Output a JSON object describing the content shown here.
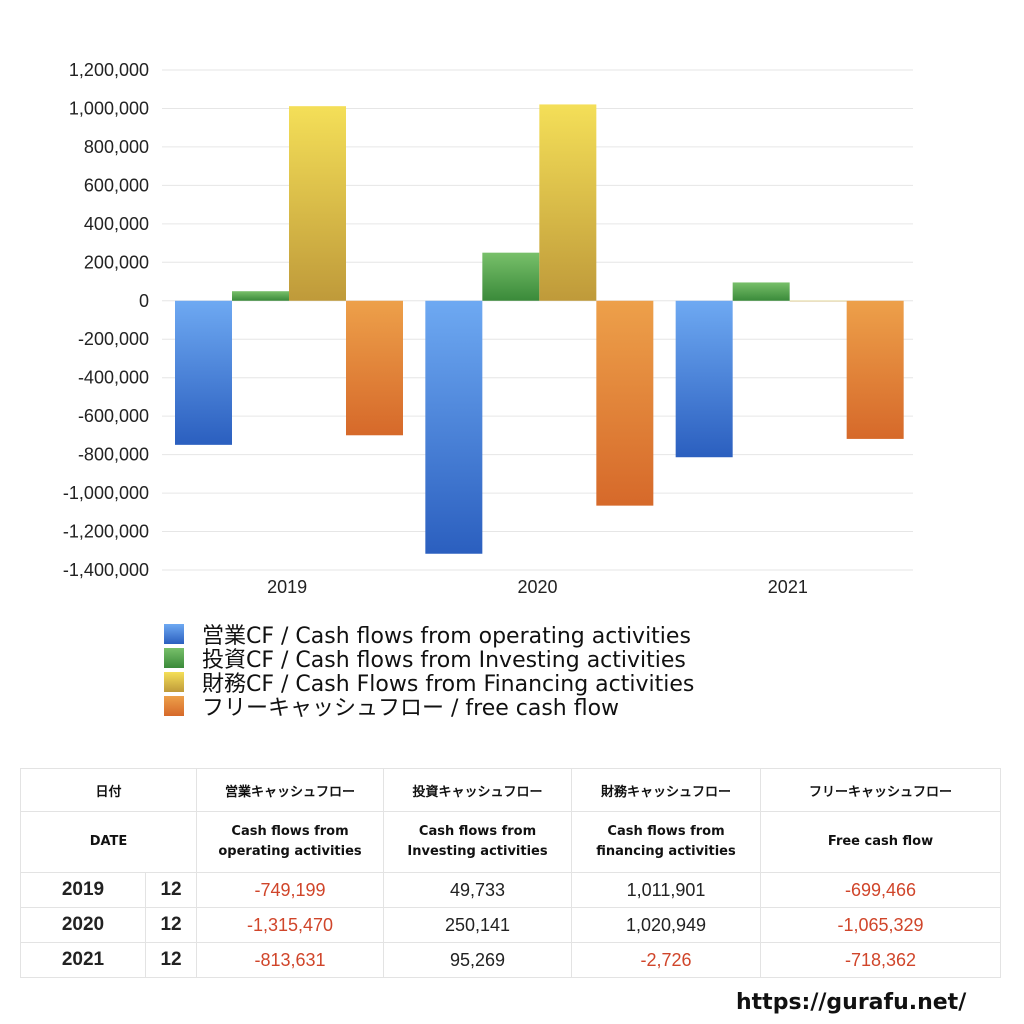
{
  "colors": {
    "operating": [
      "#6ea9f2",
      "#2b5fbf"
    ],
    "investing": [
      "#78c06a",
      "#3a8a3a"
    ],
    "financing": [
      "#f4df58",
      "#bf9a3a"
    ],
    "free": [
      "#eda04a",
      "#d6692a"
    ],
    "negative_text": "#d0452a"
  },
  "chart_data": {
    "type": "bar",
    "categories": [
      "2019",
      "2020",
      "2021"
    ],
    "ylim": [
      -1400000,
      1200000
    ],
    "yticks": [
      1200000,
      1000000,
      800000,
      600000,
      400000,
      200000,
      0,
      -200000,
      -400000,
      -600000,
      -800000,
      -1000000,
      -1200000,
      -1400000
    ],
    "ytick_labels": [
      "1,200,000",
      "1,000,000",
      "800,000",
      "600,000",
      "400,000",
      "200,000",
      "0",
      "-200,000",
      "-400,000",
      "-600,000",
      "-800,000",
      "-1,000,000",
      "-1,200,000",
      "-1,400,000"
    ],
    "grid": true,
    "legend_position": "bottom-left",
    "series": [
      {
        "name": "営業CF / Cash flows from operating activities",
        "key": "operating",
        "values": [
          -749199,
          -1315470,
          -813631
        ]
      },
      {
        "name": "投資CF / Cash flows from Investing activities",
        "key": "investing",
        "values": [
          49733,
          250141,
          95269
        ]
      },
      {
        "name": "財務CF / Cash Flows from Financing activities",
        "key": "financing",
        "values": [
          1011901,
          1020949,
          -2726
        ]
      },
      {
        "name": "フリーキャッシュフロー / free cash flow",
        "key": "free",
        "values": [
          -699466,
          -1065329,
          -718362
        ]
      }
    ]
  },
  "table": {
    "header_jp": [
      "日付",
      "営業キャッシュフロー",
      "投資キャッシュフロー",
      "財務キャッシュフロー",
      "フリーキャッシュフロー"
    ],
    "header_en": [
      "DATE",
      "Cash flows from\noperating activities",
      "Cash flows from\nInvesting activities",
      "Cash flows from\nfinancing activities",
      "Free cash flow"
    ],
    "rows": [
      {
        "year": "2019",
        "month": "12",
        "operating": "-749,199",
        "investing": "49,733",
        "financing": "1,011,901",
        "free": "-699,466"
      },
      {
        "year": "2020",
        "month": "12",
        "operating": "-1,315,470",
        "investing": "250,141",
        "financing": "1,020,949",
        "free": "-1,065,329"
      },
      {
        "year": "2021",
        "month": "12",
        "operating": "-813,631",
        "investing": "95,269",
        "financing": "-2,726",
        "free": "-718,362"
      }
    ]
  },
  "site_url": "https://gurafu.net/"
}
